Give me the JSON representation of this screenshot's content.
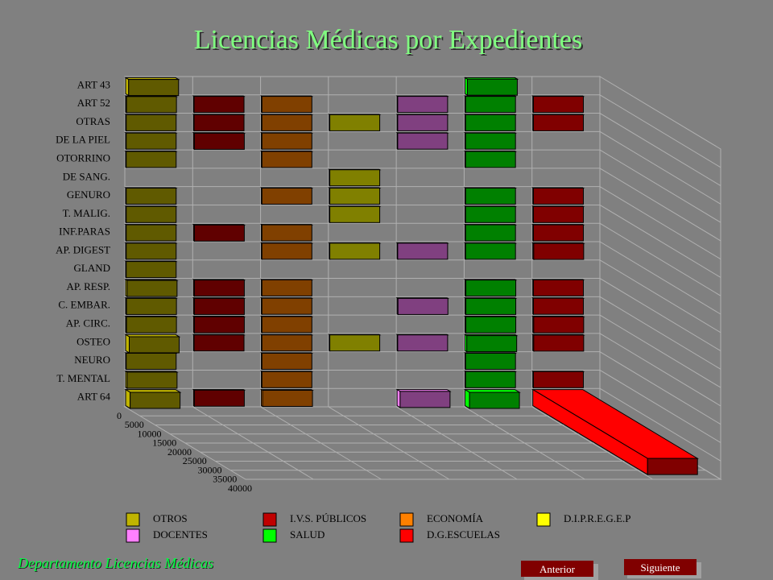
{
  "chart_data": {
    "type": "bar3d",
    "title": "Licencias Médicas por Expedientes",
    "categories": [
      "ART 43",
      "ART 52",
      "OTRAS",
      "DE LA PIEL",
      "OTORRINO",
      "DE SANG.",
      "GENURO",
      "T. MALIG.",
      "INF.PARAS",
      "AP. DIGEST",
      "GLAND",
      "AP. RESP.",
      "C. EMBAR.",
      "AP. CIRC.",
      "OSTEO",
      "NEURO",
      "T. MENTAL",
      "ART 64"
    ],
    "series": [
      {
        "name": "OTROS",
        "color": "#c0b400",
        "values": [
          1000,
          300,
          200,
          200,
          200,
          null,
          200,
          200,
          200,
          200,
          200,
          500,
          300,
          300,
          1200,
          200,
          500,
          1500
        ]
      },
      {
        "name": "I.V.S. PÚBLICOS",
        "color": "#c00000",
        "values": [
          null,
          200,
          200,
          300,
          null,
          null,
          null,
          null,
          300,
          null,
          null,
          300,
          300,
          300,
          200,
          null,
          null,
          300
        ]
      },
      {
        "name": "ECONOMÍA",
        "color": "#ff8000",
        "values": [
          null,
          200,
          200,
          200,
          200,
          null,
          200,
          null,
          200,
          200,
          null,
          200,
          200,
          200,
          200,
          200,
          200,
          400
        ]
      },
      {
        "name": "D.I.P.R.E.G.E.P",
        "color": "#ffff00",
        "values": [
          null,
          null,
          200,
          null,
          null,
          200,
          200,
          200,
          null,
          200,
          null,
          null,
          null,
          null,
          200,
          null,
          null,
          null
        ]
      },
      {
        "name": "DOCENTES",
        "color": "#ff80ff",
        "values": [
          null,
          200,
          200,
          200,
          null,
          null,
          null,
          null,
          null,
          200,
          null,
          null,
          300,
          null,
          200,
          null,
          null,
          1000
        ]
      },
      {
        "name": "SALUD",
        "color": "#00ff00",
        "values": [
          800,
          200,
          200,
          200,
          200,
          null,
          200,
          200,
          200,
          200,
          null,
          300,
          300,
          300,
          600,
          200,
          200,
          1500
        ]
      },
      {
        "name": "D.G.ESCUELAS",
        "color": "#ff0000",
        "values": [
          null,
          200,
          200,
          null,
          null,
          null,
          200,
          200,
          200,
          300,
          null,
          200,
          200,
          300,
          300,
          null,
          200,
          38000
        ]
      }
    ],
    "zlim": [
      0,
      40000
    ],
    "zticks": [
      0,
      5000,
      10000,
      15000,
      20000,
      25000,
      30000,
      35000,
      40000
    ]
  },
  "footer": "Departamento Licencias Médicas",
  "buttons": [
    "Anterior",
    "Siguiente"
  ]
}
